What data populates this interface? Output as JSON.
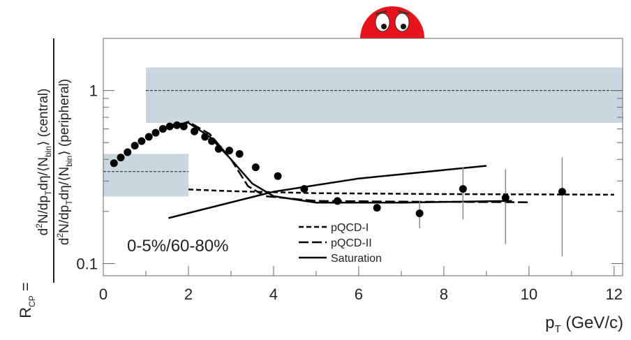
{
  "chart_data": {
    "type": "scatter",
    "ylabel": {
      "lhs": "R",
      "lhs_sub": "CP",
      "eq": " =",
      "numerator": [
        "d",
        "2",
        "N/dp",
        "T",
        "dη/⟨N",
        "bin",
        "⟩ (central)"
      ],
      "denominator": [
        "d",
        "2",
        "N/dp",
        "T",
        "dη/⟨N",
        "bin",
        "⟩ (peripheral)"
      ]
    },
    "xlabel": [
      "p",
      "T",
      " (GeV/c)"
    ],
    "annotation": "0-5%/60-80%",
    "xlim": [
      0,
      12.2
    ],
    "ylim": [
      0.085,
      2.0
    ],
    "log_y": true,
    "xticks": [
      0,
      2,
      4,
      6,
      8,
      10,
      12
    ],
    "xminorticks": [
      1,
      3,
      5,
      7,
      9,
      11
    ],
    "yticks": [
      0.1,
      1
    ],
    "yminorticks": [
      0.2,
      0.3,
      0.4,
      0.5,
      0.6,
      0.7,
      0.8,
      0.9,
      2
    ],
    "bands": [
      {
        "x": [
          1.0,
          12.2
        ],
        "y": [
          0.65,
          1.36
        ],
        "line": 1,
        "color": "#c9d7de"
      },
      {
        "x": [
          0,
          2.0
        ],
        "y": [
          0.244,
          0.43
        ],
        "line": 0.34,
        "color": "#c9d7de"
      }
    ],
    "points": {
      "color": "#000000",
      "x": [
        0.25,
        0.41,
        0.57,
        0.74,
        0.9,
        1.07,
        1.23,
        1.4,
        1.56,
        1.73,
        1.89,
        2.14,
        2.39,
        2.55,
        2.71,
        2.96,
        3.2,
        3.58,
        4.1,
        4.72,
        5.5,
        6.43,
        7.43,
        8.45,
        9.45,
        10.78
      ],
      "values": [
        0.38,
        0.41,
        0.44,
        0.48,
        0.51,
        0.54,
        0.57,
        0.6,
        0.62,
        0.63,
        0.62,
        0.58,
        0.54,
        0.51,
        0.46,
        0.45,
        0.43,
        0.36,
        0.32,
        0.27,
        0.23,
        0.21,
        0.195,
        0.27,
        0.24,
        0.26
      ],
      "errors": [
        null,
        null,
        null,
        null,
        null,
        null,
        null,
        null,
        null,
        null,
        null,
        null,
        null,
        null,
        null,
        null,
        null,
        null,
        null,
        null,
        null,
        null,
        0.035,
        0.09,
        0.11,
        0.15
      ]
    },
    "series": [
      {
        "name": "pQCD-I",
        "style": "dashed",
        "color": "#000000",
        "x": [
          2.0,
          3.0,
          5.0,
          8.0,
          10.0,
          12.0
        ],
        "values": [
          0.268,
          0.262,
          0.255,
          0.252,
          0.251,
          0.25
        ]
      },
      {
        "name": "pQCD-II",
        "style": "long-dashed",
        "color": "#000000",
        "x": [
          1.5,
          2.0,
          2.5,
          3.0,
          3.4,
          3.8,
          5.0,
          7.0,
          10.0
        ],
        "values": [
          0.6,
          0.66,
          0.56,
          0.4,
          0.28,
          0.245,
          0.23,
          0.228,
          0.226
        ]
      },
      {
        "name": "Saturation",
        "style": "solid",
        "color": "#000000",
        "x": [
          1.53,
          4.0,
          6.0,
          9.0,
          9.3,
          1.5,
          2.0,
          2.5,
          3.0,
          3.5,
          4.0,
          5.0,
          7.0,
          9.6
        ],
        "values": [
          0.183,
          0.26,
          0.31,
          0.367,
          null,
          0.63,
          0.65,
          0.54,
          0.4,
          0.29,
          0.245,
          0.225,
          0.225,
          0.23
        ]
      }
    ]
  }
}
